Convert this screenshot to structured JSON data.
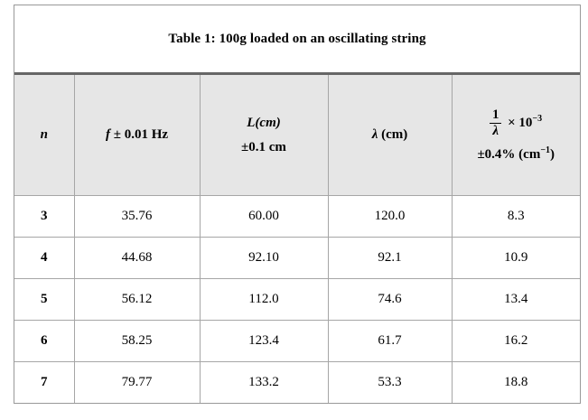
{
  "colors": {
    "header_bg": "#e6e6e6",
    "cell_border": "#a6a6a6",
    "outer_border": "#999999",
    "title_divider": "#666666",
    "text": "#000000",
    "background": "#ffffff"
  },
  "table": {
    "title": "Table 1: 100g loaded on an oscillating string",
    "header": {
      "n": {
        "symbol": "n"
      },
      "f": {
        "symbol": "f",
        "label": "± 0.01 Hz"
      },
      "L": {
        "line1": "L(cm)",
        "line2": "±0.1 cm"
      },
      "lambda": {
        "symbol": "λ",
        "label": "(cm)"
      },
      "inv_lambda": {
        "frac_numerator": "1",
        "frac_denominator": "λ",
        "times_base": "× 10",
        "times_exponent": "−3",
        "uncertainty_pre": "±0.4% (cm",
        "uncertainty_exponent": "−1",
        "uncertainty_post": ")"
      }
    },
    "rows": [
      {
        "n": "3",
        "f": "35.76",
        "L": "60.00",
        "lambda": "120.0",
        "inv_lambda": "8.3"
      },
      {
        "n": "4",
        "f": "44.68",
        "L": "92.10",
        "lambda": "92.1",
        "inv_lambda": "10.9"
      },
      {
        "n": "5",
        "f": "56.12",
        "L": "112.0",
        "lambda": "74.6",
        "inv_lambda": "13.4"
      },
      {
        "n": "6",
        "f": "58.25",
        "L": "123.4",
        "lambda": "61.7",
        "inv_lambda": "16.2"
      },
      {
        "n": "7",
        "f": "79.77",
        "L": "133.2",
        "lambda": "53.3",
        "inv_lambda": "18.8"
      }
    ]
  }
}
